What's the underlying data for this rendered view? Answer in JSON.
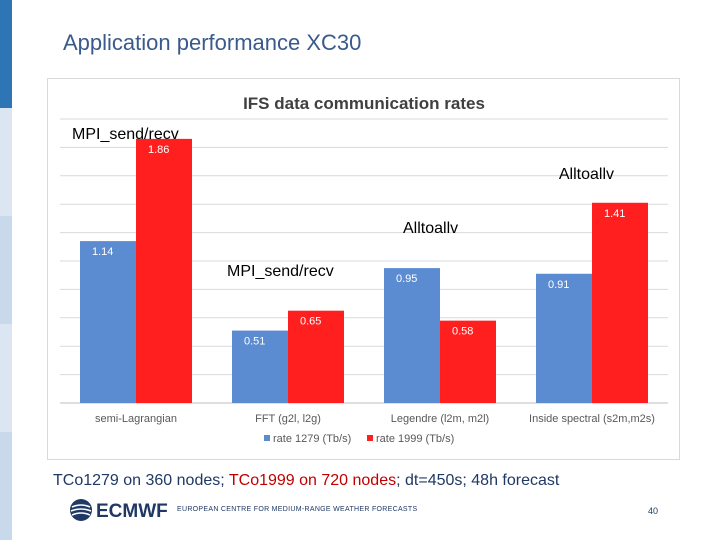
{
  "slide": {
    "title": "Application performance XC30",
    "page_number": "40",
    "footer": "EUROPEAN CENTRE FOR MEDIUM-RANGE WEATHER FORECASTS",
    "logo_text": "ECMWF",
    "caption": {
      "part1": "TCo1279 on 360 nodes",
      "sep1": ";",
      "part2": "TCo1999 on 720 nodes",
      "rest": "; dt=450s; 48h forecast"
    },
    "colors": {
      "accent_blue": "#3a5a8c",
      "caption_red": "#c00000",
      "band_top": "#2e75b6",
      "band_light": "#c9d9ec"
    }
  },
  "chart_data": {
    "type": "bar",
    "title": "IFS data communication rates",
    "categories": [
      "semi-Lagrangian",
      "FFT (g2l, l2g)",
      "Legendre (l2m, m2l)",
      "Inside spectral (s2m,m2s)"
    ],
    "series": [
      {
        "name": "rate 1279 (Tb/s)",
        "values": [
          1.14,
          0.51,
          0.95,
          0.91
        ],
        "color": "#5b8bd0"
      },
      {
        "name": "rate 1999 (Tb/s)",
        "values": [
          1.86,
          0.65,
          0.58,
          1.41
        ],
        "color": "#ff1f1f"
      }
    ],
    "ylim": [
      0,
      2.0
    ],
    "grid": true,
    "legend": "bottom",
    "annotations": [
      "MPI_send/recv",
      "MPI_send/recv",
      "Alltoallv",
      "Alltoallv"
    ]
  }
}
